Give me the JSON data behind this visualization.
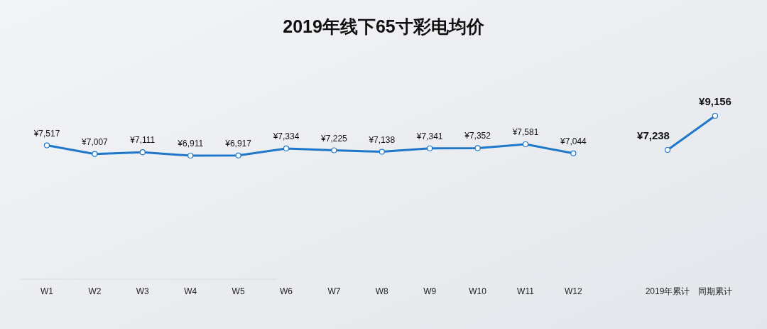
{
  "chart_data": [
    {
      "type": "line",
      "title": "2019年线下65寸彩电均价",
      "categories": [
        "W1",
        "W2",
        "W3",
        "W4",
        "W5",
        "W6",
        "W7",
        "W8",
        "W9",
        "W10",
        "W11",
        "W12"
      ],
      "marker": "circle",
      "series": [
        {
          "color": "#1f77c9",
          "values": [
            7517,
            7007,
            7111,
            6911,
            6917,
            7334,
            7225,
            7138,
            7341,
            7352,
            7581,
            7044
          ],
          "value_labels": [
            "¥7,517",
            "¥7,007",
            "¥7,111",
            "¥6,911",
            "¥6,917",
            "¥7,334",
            "¥7,225",
            "¥7,138",
            "¥7,341",
            "¥7,352",
            "¥7,581",
            "¥7,044"
          ]
        }
      ]
    },
    {
      "type": "line",
      "categories": [
        "2019年累计",
        "同期累计"
      ],
      "marker": "circle",
      "series": [
        {
          "color": "#1f77c9",
          "values": [
            7238,
            9156
          ],
          "value_labels": [
            "¥7,238",
            "¥9,156"
          ]
        }
      ]
    }
  ]
}
